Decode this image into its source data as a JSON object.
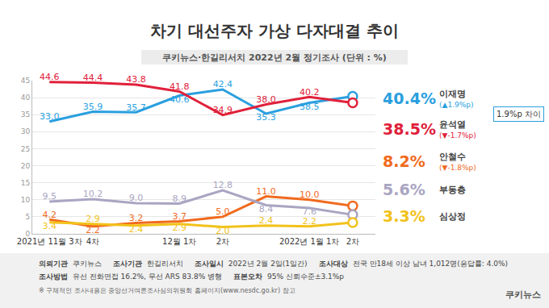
{
  "chart_data": {
    "type": "line",
    "title": "차기 대선주자 가상 다자대결 추이",
    "subtitle": "쿠키뉴스·한길리서치 2022년 2월 정기조사 (단위 : %)",
    "categories": [
      "2021년 11월 3차",
      "4차",
      null,
      "12월 1차",
      "2차",
      null,
      "2022년 1월 1차",
      "2차"
    ],
    "series": [
      {
        "name": "이재명",
        "color": "#2a9fdf",
        "change": "(▲1.9%p)",
        "values": [
          33.0,
          35.9,
          35.7,
          40.6,
          42.4,
          35.3,
          38.5,
          40.4
        ],
        "value_labels": [
          "33.0",
          "35.9",
          "35.7",
          "40.6",
          "42.4",
          "35.3",
          "38.5",
          "40.4%"
        ]
      },
      {
        "name": "윤석열",
        "color": "#e0203a",
        "change": "(▼-1.7%p)",
        "values": [
          44.6,
          44.4,
          43.8,
          41.8,
          34.9,
          38.0,
          40.2,
          38.5
        ],
        "value_labels": [
          "44.6",
          "44.4",
          "43.8",
          "41.8",
          "34.9",
          "38.0",
          "40.2",
          "38.5%"
        ]
      },
      {
        "name": "안철수",
        "color": "#f06a1d",
        "change": "(▼-1.8%p)",
        "values": [
          4.2,
          2.2,
          3.2,
          3.7,
          5.0,
          11.0,
          10.0,
          8.2
        ],
        "value_labels": [
          "4.2",
          "2.2",
          "3.2",
          "3.7",
          "5.0",
          "11.0",
          "10.0",
          "8.2%"
        ]
      },
      {
        "name": "부동층",
        "color": "#a9a5c2",
        "values": [
          9.5,
          10.2,
          9.0,
          8.9,
          12.8,
          8.4,
          7.6,
          5.6
        ],
        "value_labels": [
          "9.5",
          "10.2",
          "9.0",
          "8.9",
          "12.8",
          "8.4",
          "7.6",
          "5.6%"
        ]
      },
      {
        "name": "심상정",
        "color": "#f2c21b",
        "values": [
          3.4,
          2.9,
          2.4,
          2.9,
          2.0,
          2.4,
          2.2,
          3.3
        ],
        "value_labels": [
          "3.4",
          "2.9",
          "2.4",
          "2.9",
          "2.0",
          "2.4",
          "2.2",
          "3.3%"
        ]
      }
    ],
    "ylim": [
      0,
      45
    ],
    "yticks": [
      0,
      5,
      10,
      15,
      20,
      25,
      30,
      35,
      40,
      45
    ],
    "grid": true,
    "data_labels": true,
    "annotations": [
      {
        "text": "1.9%p 차이"
      }
    ],
    "footer": {
      "rows": [
        [
          {
            "label": "의뢰기관",
            "value": "쿠키뉴스"
          },
          {
            "label": "조사기관",
            "value": "한길리서치"
          },
          {
            "label": "조사일시",
            "value": "2022년 2월 2일(1일간)"
          },
          {
            "label": "조사대상",
            "value": "전국 만18세 이상 남녀 1,012명(응답률: 4.0%)"
          }
        ],
        [
          {
            "label": "조사방법",
            "value": "유선 전화면접 16.2%, 무선 ARS 83.8% 병행"
          },
          {
            "label": "표본오차",
            "value": "95% 신뢰수준±3.1%p"
          }
        ]
      ],
      "note": "※ 구체적인 조사내용은 중앙선거여론조사심의위원회 홈페이지(www.nesdc.go.kr) 참고",
      "logo": "쿠키뉴스"
    }
  }
}
